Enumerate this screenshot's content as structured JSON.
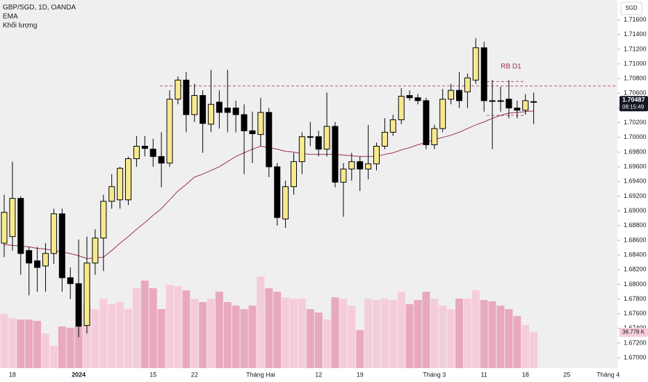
{
  "chart_data": {
    "type": "candlestick",
    "currency": "SGD",
    "annotation": "RB D1",
    "countdown": "08:15:49",
    "categories": [
      null,
      "18",
      null,
      null,
      null,
      null,
      null,
      null,
      null,
      "2024",
      null,
      null,
      null,
      null,
      null,
      null,
      null,
      null,
      "15",
      null,
      null,
      null,
      null,
      "22",
      null,
      null,
      null,
      null,
      null,
      null,
      null,
      "Tháng Hai",
      null,
      null,
      null,
      null,
      null,
      null,
      "12",
      null,
      null,
      null,
      null,
      "19",
      null,
      null,
      null,
      null,
      null,
      null,
      null,
      null,
      "Tháng 3",
      null,
      null,
      null,
      null,
      null,
      "11",
      null,
      null,
      null,
      null,
      "18",
      null,
      null,
      null,
      null,
      "25",
      null,
      null,
      null,
      null,
      "Tháng 4"
    ],
    "ohlc": {
      "name": "GBP/SGD, 1D, OANDA",
      "up_color": "#f7e98e",
      "down_color": "#000000",
      "open": [
        1.6856,
        1.6865,
        1.6917,
        1.6846,
        1.6832,
        1.6825,
        1.6842,
        1.6896,
        1.6809,
        1.6801,
        1.6744,
        1.6829,
        1.6863,
        1.6913,
        1.6915,
        1.6915,
        1.6971,
        1.6988,
        1.6984,
        1.6974,
        1.6965,
        1.7052,
        1.7078,
        1.7031,
        1.7057,
        1.7018,
        1.7048,
        1.704,
        1.704,
        1.7031,
        1.7009,
        1.7004,
        1.7034,
        1.696,
        1.6889,
        1.6933,
        1.6967,
        1.7001,
        1.7001,
        1.6984,
        1.7015,
        1.6939,
        1.6957,
        1.6967,
        1.6957,
        1.6964,
        1.6988,
        1.7007,
        1.7024,
        1.7057,
        1.7054,
        1.705,
        1.699,
        1.7012,
        1.7052,
        1.7064,
        1.7062,
        1.7078,
        1.7122,
        1.705,
        1.705,
        1.7052,
        1.704,
        1.7037,
        1.7048,
        null,
        null,
        null,
        null,
        null,
        null,
        null,
        null,
        null
      ],
      "high": [
        1.6922,
        1.6967,
        1.692,
        1.6851,
        1.6851,
        1.6856,
        1.6903,
        1.6903,
        1.6823,
        1.6861,
        1.6865,
        1.6875,
        1.6922,
        1.695,
        1.696,
        1.6974,
        1.7002,
        1.7002,
        1.6998,
        1.7007,
        1.7064,
        1.7083,
        1.7089,
        1.7073,
        1.7064,
        1.7092,
        1.7064,
        1.7092,
        1.705,
        1.7045,
        1.7035,
        1.7054,
        1.704,
        1.6965,
        1.6941,
        1.6979,
        1.7007,
        1.7021,
        1.7009,
        1.7061,
        1.7021,
        1.6965,
        1.6979,
        1.6974,
        1.7017,
        1.6993,
        1.7026,
        1.7031,
        1.7067,
        1.7064,
        1.7059,
        1.7054,
        1.7017,
        1.7066,
        1.7073,
        1.7089,
        1.7087,
        1.7135,
        1.713,
        1.7078,
        1.7069,
        1.7078,
        1.705,
        1.7059,
        1.7061,
        null,
        null,
        null,
        null,
        null,
        null,
        null,
        null,
        null
      ],
      "low": [
        1.6837,
        1.6846,
        1.6813,
        1.6785,
        1.679,
        1.679,
        1.6828,
        1.679,
        1.678,
        1.6728,
        1.6733,
        1.6813,
        1.6818,
        1.6903,
        1.6903,
        1.6908,
        1.696,
        1.6974,
        1.696,
        1.6932,
        1.696,
        1.7045,
        1.7007,
        1.7021,
        1.6979,
        1.7007,
        1.7012,
        1.7007,
        1.7007,
        1.695,
        1.6965,
        1.6988,
        1.6946,
        1.688,
        1.6877,
        1.6922,
        1.695,
        1.6988,
        1.6974,
        1.6974,
        1.6932,
        1.6892,
        1.6941,
        1.6927,
        1.6943,
        1.6955,
        1.6984,
        1.7002,
        1.7018,
        1.705,
        1.7045,
        1.6984,
        1.6984,
        1.7007,
        1.7045,
        1.704,
        1.704,
        1.7073,
        1.7035,
        1.6984,
        1.7035,
        1.7026,
        1.7026,
        1.7031,
        1.7018,
        null,
        null,
        null,
        null,
        null,
        null,
        null,
        null,
        null
      ],
      "close": [
        1.6898,
        1.6917,
        1.6842,
        1.6829,
        1.6823,
        1.6842,
        1.6896,
        1.6809,
        1.6801,
        1.6743,
        1.6829,
        1.6863,
        1.6913,
        1.6933,
        1.6958,
        1.6971,
        1.6988,
        1.6985,
        1.6974,
        1.6965,
        1.7052,
        1.7078,
        1.7031,
        1.7057,
        1.7019,
        1.7045,
        1.7034,
        1.7034,
        1.7031,
        1.7009,
        1.7005,
        1.7034,
        1.696,
        1.6891,
        1.6933,
        1.6967,
        1.7001,
        1.7,
        1.6984,
        1.7015,
        1.6939,
        1.6957,
        1.6967,
        1.6957,
        1.6964,
        1.6988,
        1.7007,
        1.7024,
        1.7056,
        1.7054,
        1.705,
        1.699,
        1.7012,
        1.7052,
        1.7064,
        1.705,
        1.7081,
        1.7122,
        1.705,
        1.7049,
        1.7049,
        1.704,
        1.7037,
        1.705,
        1.70487,
        null,
        null,
        null,
        null,
        null,
        null,
        null,
        null,
        null
      ]
    },
    "ema": {
      "name": "EMA",
      "color": "#9b2d4a",
      "values": [
        1.6854,
        1.6853,
        1.6852,
        1.6851,
        1.6849,
        1.6848,
        1.6846,
        1.6844,
        1.6842,
        1.6839,
        1.6835,
        1.6836,
        1.6837,
        1.6846,
        1.6856,
        1.6865,
        1.6875,
        1.6884,
        1.6894,
        1.6903,
        1.6915,
        1.6927,
        1.6936,
        1.6946,
        1.695,
        1.6955,
        1.696,
        1.6967,
        1.6974,
        1.6979,
        1.6984,
        1.6988,
        1.6986,
        1.6984,
        1.6981,
        1.698,
        1.6978,
        1.6977,
        1.6977,
        1.6977,
        1.6977,
        1.6976,
        1.6975,
        1.6974,
        1.6974,
        1.6974,
        1.6977,
        1.6979,
        1.6983,
        1.6986,
        1.699,
        1.6993,
        1.6997,
        1.7,
        1.7003,
        1.7007,
        1.7012,
        1.7017,
        1.7021,
        1.7026,
        1.703,
        1.7033,
        1.7034,
        1.7035,
        1.7036,
        null,
        null,
        null,
        null,
        null,
        null,
        null,
        null,
        null
      ]
    },
    "volume": {
      "name": "Khối lượng",
      "axis": "y2",
      "up_color": "#f5cdd9",
      "down_color": "#e8a9be",
      "values": [
        58.2,
        53.7,
        52.2,
        52.2,
        50.7,
        37.3,
        23.9,
        44.8,
        43.3,
        44.8,
        67.2,
        63.4,
        74.6,
        68.7,
        70.9,
        63.4,
        85.8,
        94,
        85.8,
        63.4,
        89.6,
        88.1,
        83.6,
        74.6,
        70.9,
        74.6,
        82.1,
        70.9,
        67.2,
        63.4,
        67.2,
        98.5,
        85.8,
        82.1,
        76.1,
        74.6,
        74.6,
        63.4,
        59.7,
        52.2,
        76.1,
        74.6,
        67.2,
        41,
        74.6,
        73.1,
        74.6,
        73.1,
        82.1,
        68.7,
        73.1,
        82.1,
        74.6,
        67.2,
        63.4,
        74.6,
        74.6,
        83.6,
        73.1,
        71.6,
        67.2,
        63.4,
        56,
        46.3,
        38.778,
        null,
        null,
        null,
        null,
        null,
        null,
        null,
        null,
        null
      ],
      "value_labels": [
        null,
        null,
        null,
        null,
        null,
        null,
        null,
        null,
        null,
        null,
        null,
        null,
        null,
        null,
        null,
        null,
        null,
        null,
        null,
        null,
        null,
        null,
        null,
        null,
        null,
        null,
        null,
        null,
        null,
        null,
        null,
        null,
        null,
        null,
        null,
        null,
        null,
        null,
        null,
        null,
        null,
        null,
        null,
        null,
        null,
        null,
        null,
        null,
        null,
        null,
        null,
        null,
        null,
        null,
        null,
        null,
        null,
        null,
        null,
        null,
        null,
        null,
        null,
        null,
        "38.778 K",
        null,
        null,
        null,
        null,
        null,
        null,
        null,
        null,
        null
      ]
    },
    "levels": [
      1.707,
      1.7076,
      1.703
    ],
    "level_color": "#c0506e",
    "ylim": [
      1.6686,
      1.7187
    ],
    "y2lim": [
      0,
      395.5
    ],
    "yticks": [
      {
        "value": 1.67,
        "label": "1.67000"
      },
      {
        "value": 1.672,
        "label": "1.67200"
      },
      {
        "value": 1.674,
        "label": "1.67400"
      },
      {
        "value": 1.676,
        "label": "1.67600"
      },
      {
        "value": 1.678,
        "label": "1.67800"
      },
      {
        "value": 1.68,
        "label": "1.68000"
      },
      {
        "value": 1.682,
        "label": "1.68200"
      },
      {
        "value": 1.684,
        "label": "1.68400"
      },
      {
        "value": 1.686,
        "label": "1.68600"
      },
      {
        "value": 1.688,
        "label": "1.68800"
      },
      {
        "value": 1.69,
        "label": "1.69000"
      },
      {
        "value": 1.692,
        "label": "1.69200"
      },
      {
        "value": 1.694,
        "label": "1.69400"
      },
      {
        "value": 1.696,
        "label": "1.69600"
      },
      {
        "value": 1.698,
        "label": "1.69800"
      },
      {
        "value": 1.7,
        "label": "1.70000"
      },
      {
        "value": 1.702,
        "label": "1.70200"
      },
      {
        "value": 1.704,
        "label": "1.70400"
      },
      {
        "value": 1.706,
        "label": "1.70600"
      },
      {
        "value": 1.708,
        "label": "1.70800"
      },
      {
        "value": 1.71,
        "label": "1.71000"
      },
      {
        "value": 1.712,
        "label": "1.71200"
      },
      {
        "value": 1.714,
        "label": "1.71400"
      },
      {
        "value": 1.716,
        "label": "1.71600"
      }
    ],
    "grid": false
  }
}
